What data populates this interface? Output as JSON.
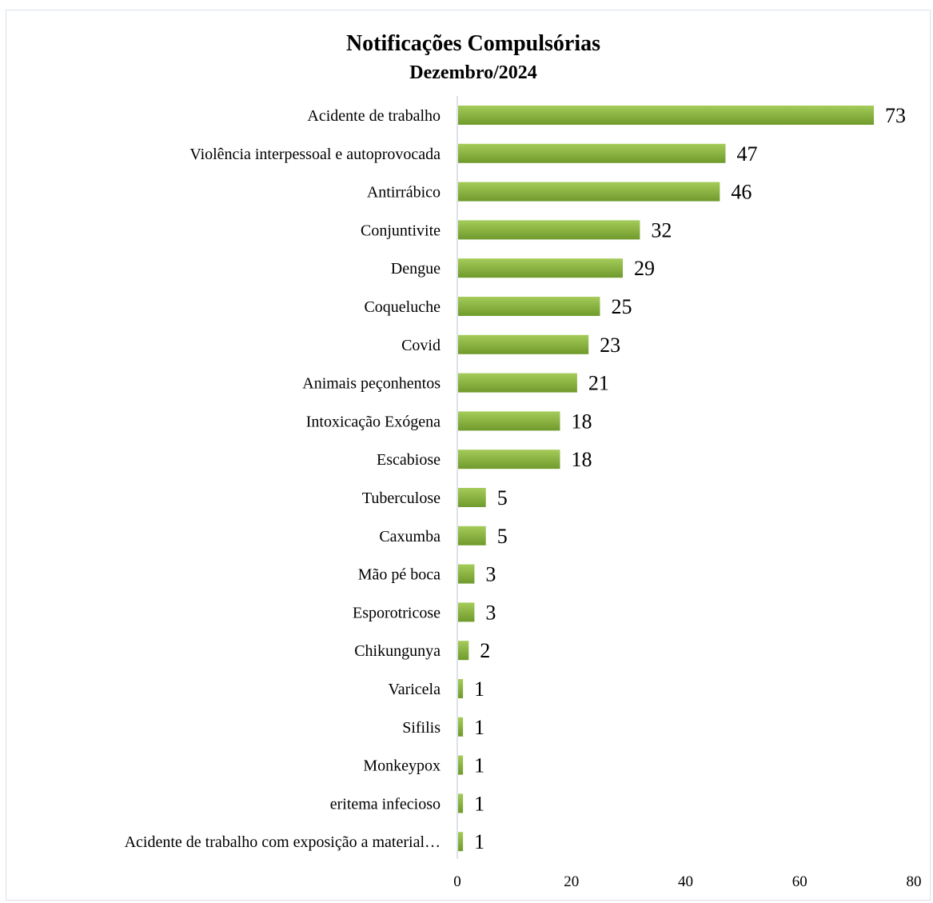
{
  "chart_data": {
    "type": "bar",
    "orientation": "horizontal",
    "title": "Notificações Compulsórias",
    "subtitle": "Dezembro/2024",
    "categories": [
      "Acidente de trabalho",
      "Violência interpessoal e autoprovocada",
      "Antirrábico",
      "Conjuntivite",
      "Dengue",
      "Coqueluche",
      "Covid",
      "Animais peçonhentos",
      "Intoxicação Exógena",
      "Escabiose",
      "Tuberculose",
      "Caxumba",
      "Mão pé boca",
      "Esporotricose",
      "Chikungunya",
      "Varicela",
      "Sifilis",
      "Monkeypox",
      "eritema infecioso",
      "Acidente de trabalho com exposição a material…"
    ],
    "values": [
      73,
      47,
      46,
      32,
      29,
      25,
      23,
      21,
      18,
      18,
      5,
      5,
      3,
      3,
      2,
      1,
      1,
      1,
      1,
      1
    ],
    "xlim": [
      0,
      80
    ],
    "xticks": [
      0,
      20,
      40,
      60,
      80
    ],
    "grid": false,
    "bar_color": "#8cb342"
  }
}
